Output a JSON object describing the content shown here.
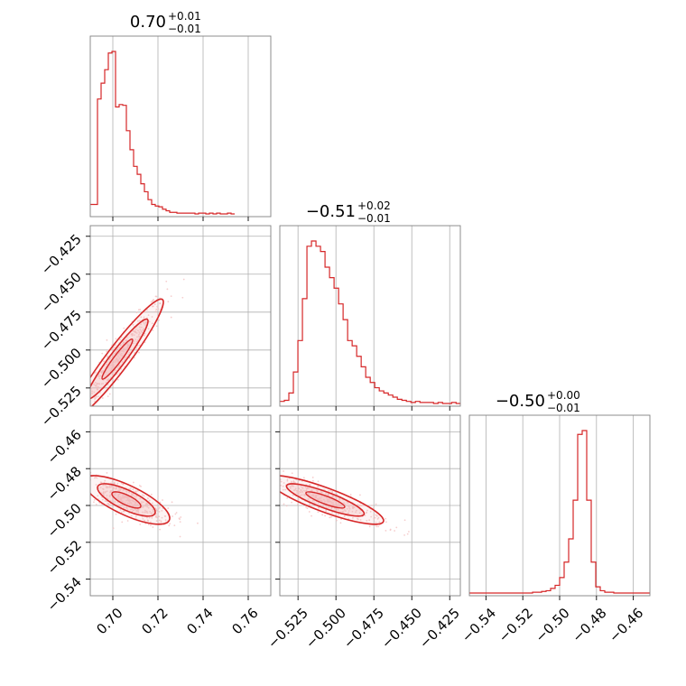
{
  "chart_data": {
    "type": "corner",
    "colors": {
      "series": "#d62728",
      "fill": "#f2b6b8",
      "points": "#f4c2c2",
      "grid": "#b0b0b0",
      "frame": "#808080"
    },
    "parameters": [
      {
        "range": [
          0.69,
          0.77
        ],
        "ticks": [
          0.7,
          0.72,
          0.74,
          0.76
        ],
        "tick_labels": [
          "0.70",
          "0.72",
          "0.74",
          "0.76"
        ],
        "title": {
          "median": "0.70",
          "upper": "+0.01",
          "lower": "−0.01"
        }
      },
      {
        "range": [
          -0.537,
          -0.418
        ],
        "ticks": [
          -0.525,
          -0.5,
          -0.475,
          -0.45,
          -0.425
        ],
        "tick_labels": [
          "−0.525",
          "−0.500",
          "−0.475",
          "−0.450",
          "−0.425"
        ],
        "title": {
          "median": "−0.51",
          "upper": "+0.02",
          "lower": "−0.01"
        }
      },
      {
        "range": [
          -0.549,
          -0.451
        ],
        "ticks": [
          -0.54,
          -0.52,
          -0.5,
          -0.48,
          -0.46
        ],
        "tick_labels": [
          "−0.54",
          "−0.52",
          "−0.50",
          "−0.48",
          "−0.46"
        ],
        "title": {
          "median": "−0.50",
          "upper": "+0.00",
          "lower": "−0.01"
        }
      }
    ],
    "histograms": [
      {
        "param": 0,
        "edges_start": 0.69,
        "bin_width": 0.0016,
        "counts": [
          12,
          12,
          145,
          165,
          182,
          203,
          205,
          135,
          138,
          137,
          105,
          81,
          60,
          50,
          38,
          28,
          18,
          12,
          10,
          9,
          6,
          4,
          2,
          2,
          1,
          1,
          1,
          1,
          1,
          0,
          1,
          1,
          0,
          1,
          0,
          1,
          0,
          0,
          1,
          0
        ]
      },
      {
        "param": 1,
        "edges_start": -0.537,
        "bin_width": 0.00298,
        "counts": [
          2,
          3,
          10,
          30,
          60,
          100,
          150,
          155,
          150,
          145,
          130,
          120,
          110,
          95,
          80,
          60,
          55,
          45,
          35,
          25,
          20,
          15,
          12,
          10,
          8,
          6,
          4,
          3,
          2,
          1,
          2,
          1,
          1,
          1,
          0,
          1,
          0,
          0,
          1,
          0
        ]
      },
      {
        "param": 2,
        "edges_start": -0.549,
        "bin_width": 0.00245,
        "counts": [
          0,
          0,
          0,
          0,
          0,
          0,
          0,
          0,
          0,
          0,
          0,
          0,
          0,
          0,
          1,
          1,
          2,
          3,
          6,
          10,
          20,
          40,
          70,
          120,
          205,
          210,
          120,
          40,
          8,
          3,
          1,
          1,
          0,
          0,
          0,
          0,
          0,
          0,
          0,
          0
        ]
      }
    ],
    "pairs": [
      {
        "x": 0,
        "y": 1,
        "rho": 0.95,
        "center": [
          0.702,
          -0.506
        ],
        "sd": [
          0.0085,
          0.0165
        ]
      },
      {
        "x": 0,
        "y": 2,
        "rho": -0.75,
        "center": [
          0.706,
          -0.497
        ],
        "sd": [
          0.008,
          0.0055
        ]
      },
      {
        "x": 1,
        "y": 2,
        "rho": -0.85,
        "center": [
          -0.507,
          -0.497
        ],
        "sd": [
          0.016,
          0.0055
        ]
      }
    ]
  }
}
